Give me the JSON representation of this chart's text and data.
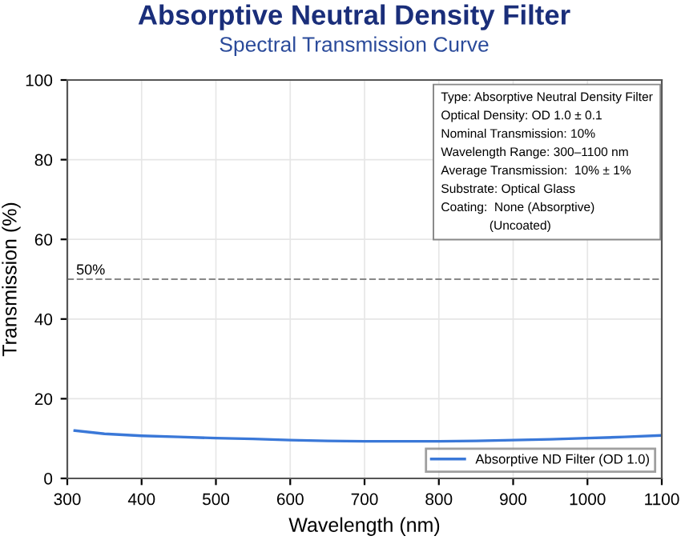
{
  "chart_data": {
    "type": "line",
    "title": "Absorptive Neutral Density Filter",
    "subtitle": "Spectral Transmission Curve",
    "xlabel": "Wavelength (nm)",
    "ylabel": "Transmission (%)",
    "x": [
      310,
      350,
      400,
      450,
      500,
      550,
      600,
      650,
      700,
      750,
      800,
      850,
      900,
      950,
      1000,
      1050,
      1100
    ],
    "series": [
      {
        "name": "Absorptive ND Filter (OD 1.0)",
        "color": "#3a78d8",
        "values": [
          12.0,
          11.2,
          10.7,
          10.4,
          10.1,
          9.9,
          9.6,
          9.4,
          9.3,
          9.3,
          9.3,
          9.4,
          9.6,
          9.8,
          10.1,
          10.4,
          10.8
        ]
      }
    ],
    "xlim": [
      300,
      1100
    ],
    "xticks": [
      300,
      400,
      500,
      600,
      700,
      800,
      900,
      1000,
      1100
    ],
    "ylim": [
      0,
      100
    ],
    "yticks": [
      0,
      20,
      40,
      60,
      80,
      100
    ],
    "ref_lines": [
      {
        "axis": "y",
        "value": 50,
        "label": "50%",
        "color": "#888888",
        "line_style": "dashed"
      }
    ],
    "annotations": [
      "Type: Absorptive Neutral Density Filter\nOptical Density: OD 1.0 ± 0.1\nNominal Transmission: 10%\nWavelength Range: 300–1100 nm\nAverage Transmission:  10% ± 1%\nSubstrate: Optical Glass\nCoating:  None (Absorptive)\n              (Uncoated)"
    ],
    "grid": true,
    "legend": "lower right",
    "marker": "none",
    "line_style": "solid"
  }
}
